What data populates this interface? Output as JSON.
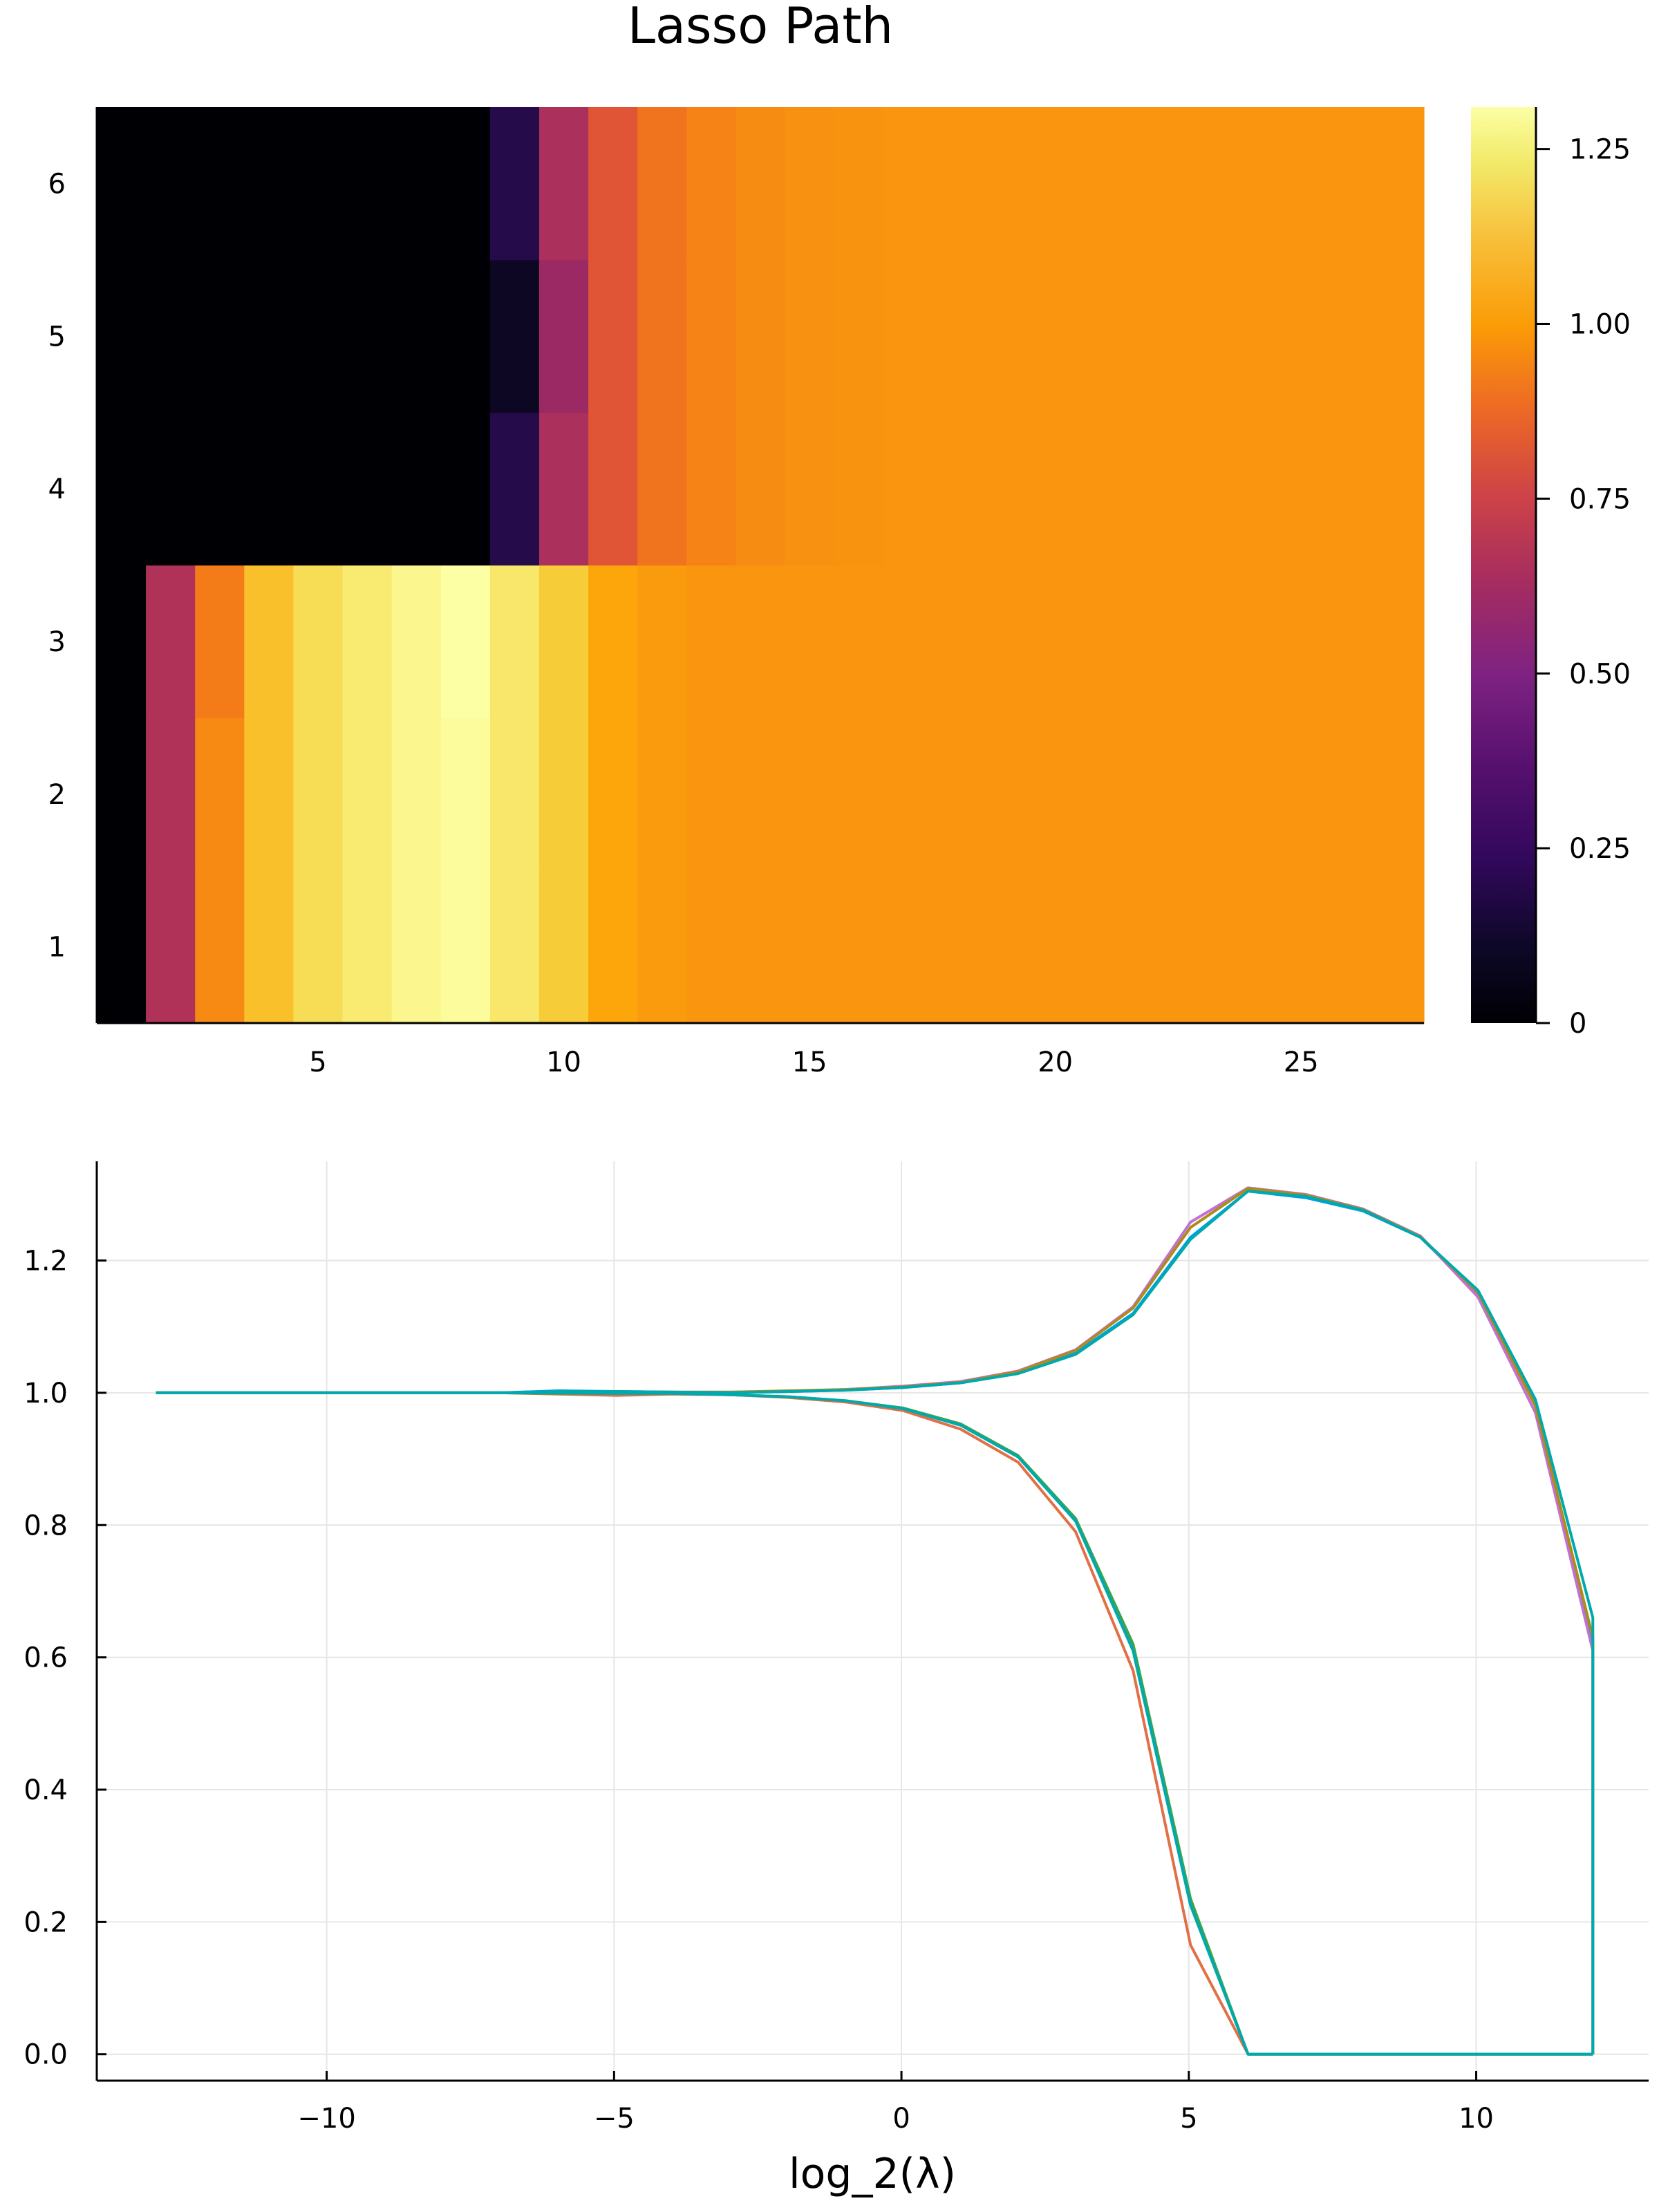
{
  "chart_data": [
    {
      "type": "heatmap",
      "title": "Lasso Path",
      "x_range": [
        0.5,
        27.5
      ],
      "y_range": [
        0.5,
        6.5
      ],
      "x_ticks": [
        5,
        10,
        15,
        20,
        25
      ],
      "y_ticks": [
        1,
        2,
        3,
        4,
        5,
        6
      ],
      "colorbar": {
        "colormap": "inferno",
        "range": [
          0,
          1.31
        ],
        "ticks": [
          0,
          0.25,
          0.5,
          0.75,
          1.0,
          1.25
        ],
        "tick_labels": [
          "0",
          "0.25",
          "0.50",
          "0.75",
          "1.00",
          "1.25"
        ]
      },
      "rows": [
        {
          "y": 1,
          "values": [
            0,
            0.62,
            0.97,
            1.12,
            1.2,
            1.24,
            1.28,
            1.3,
            1.23,
            1.15,
            1.05,
            1.02,
            1.0,
            1.0,
            1.0,
            1.0,
            1.0,
            1.0,
            1.0,
            1.0,
            1.0,
            1.0,
            1.0,
            1.0,
            1.0,
            1.0,
            1.0
          ]
        },
        {
          "y": 2,
          "values": [
            0,
            0.62,
            0.97,
            1.12,
            1.2,
            1.24,
            1.28,
            1.3,
            1.23,
            1.15,
            1.05,
            1.02,
            1.0,
            1.0,
            1.0,
            1.0,
            1.0,
            1.0,
            1.0,
            1.0,
            1.0,
            1.0,
            1.0,
            1.0,
            1.0,
            1.0,
            1.0
          ]
        },
        {
          "y": 3,
          "values": [
            0,
            0.62,
            0.93,
            1.12,
            1.2,
            1.24,
            1.28,
            1.31,
            1.23,
            1.15,
            1.05,
            1.02,
            1.0,
            1.0,
            1.0,
            1.0,
            1.0,
            1.0,
            1.0,
            1.0,
            1.0,
            1.0,
            1.0,
            1.0,
            1.0,
            1.0,
            1.0
          ]
        },
        {
          "y": 4,
          "values": [
            0,
            0,
            0,
            0,
            0,
            0,
            0,
            0,
            0.18,
            0.6,
            0.8,
            0.9,
            0.95,
            0.975,
            0.99,
            0.995,
            1.0,
            1.0,
            1.0,
            1.0,
            1.0,
            1.0,
            1.0,
            1.0,
            1.0,
            1.0,
            1.0
          ]
        },
        {
          "y": 5,
          "values": [
            0,
            0,
            0,
            0,
            0,
            0,
            0,
            0,
            0.08,
            0.55,
            0.8,
            0.9,
            0.95,
            0.975,
            0.99,
            0.995,
            1.0,
            1.0,
            1.0,
            1.0,
            1.0,
            1.0,
            1.0,
            1.0,
            1.0,
            1.0,
            1.0
          ]
        },
        {
          "y": 6,
          "values": [
            0,
            0,
            0,
            0,
            0,
            0,
            0,
            0,
            0.18,
            0.6,
            0.8,
            0.9,
            0.95,
            0.975,
            0.99,
            0.995,
            1.0,
            1.0,
            1.0,
            1.0,
            1.0,
            1.0,
            1.0,
            1.0,
            1.0,
            1.0,
            1.0
          ]
        }
      ]
    },
    {
      "type": "line",
      "xlabel": "log_2(λ)",
      "ylabel": "",
      "xlim": [
        -14,
        13
      ],
      "ylim": [
        -0.04,
        1.35
      ],
      "x_ticks": [
        -10,
        -5,
        0,
        5,
        10
      ],
      "x_tick_labels": [
        "−10",
        "−5",
        "0",
        "5",
        "10"
      ],
      "y_ticks": [
        0,
        0.2,
        0.4,
        0.6,
        0.8,
        1.0,
        1.2
      ],
      "y_tick_labels": [
        "0.0",
        "0.2",
        "0.4",
        "0.6",
        "0.8",
        "1.0",
        "1.2"
      ],
      "grid": true,
      "legend": "none",
      "x": [
        -12.97,
        -11.97,
        -10.97,
        -9.97,
        -8.97,
        -7.97,
        -6.97,
        -5.97,
        -4.97,
        -3.97,
        -2.97,
        -1.97,
        -0.97,
        0.03,
        1.03,
        2.03,
        3.03,
        4.03,
        5.03,
        6.03,
        7.03,
        8.03,
        9.03,
        10.03,
        11.03,
        12.03,
        12.03
      ],
      "series": [
        {
          "color": "#009af9",
          "values": [
            1,
            1,
            1,
            1,
            1,
            1,
            1,
            1.003,
            1.002,
            1.001,
            1.0,
            1.002,
            1.004,
            1.008,
            1.015,
            1.03,
            1.06,
            1.12,
            1.235,
            1.305,
            1.295,
            1.275,
            1.235,
            1.15,
            0.985,
            0.62,
            0
          ]
        },
        {
          "color": "#e26f46",
          "values": [
            1,
            1,
            1,
            1,
            1,
            1,
            1,
            0.998,
            0.996,
            0.998,
            0.997,
            0.993,
            0.986,
            0.973,
            0.945,
            0.895,
            0.79,
            0.58,
            0.165,
            0,
            0,
            0,
            0,
            0,
            0,
            0,
            0
          ]
        },
        {
          "color": "#3da44d",
          "values": [
            1,
            1,
            1,
            1,
            1,
            1,
            1,
            0.999,
            0.999,
            0.999,
            0.997,
            0.994,
            0.988,
            0.977,
            0.953,
            0.905,
            0.81,
            0.62,
            0.235,
            0,
            0,
            0,
            0,
            0,
            0,
            0,
            0
          ]
        },
        {
          "color": "#c271d2",
          "values": [
            1,
            1,
            1,
            1,
            1,
            1,
            1,
            1.001,
            1.001,
            1.001,
            1.001,
            1.002,
            1.005,
            1.01,
            1.017,
            1.033,
            1.065,
            1.13,
            1.258,
            1.31,
            1.3,
            1.278,
            1.237,
            1.145,
            0.97,
            0.61,
            0
          ]
        },
        {
          "color": "#ac8d18",
          "values": [
            1,
            1,
            1,
            1,
            1,
            1,
            1,
            1.001,
            1.001,
            1.001,
            1.001,
            1.003,
            1.005,
            1.009,
            1.016,
            1.032,
            1.064,
            1.128,
            1.25,
            1.309,
            1.299,
            1.277,
            1.236,
            1.152,
            0.98,
            0.63,
            0
          ]
        },
        {
          "color": "#00a9ad",
          "values": [
            1,
            1,
            1,
            1,
            1,
            1,
            1,
            1.0,
            0.999,
            0.999,
            0.997,
            0.994,
            0.988,
            0.976,
            0.951,
            0.903,
            0.806,
            0.61,
            0.225,
            0,
            0,
            0,
            0,
            0,
            0,
            0,
            0
          ]
        },
        {
          "color": "#00a9ad",
          "values": [
            1,
            1,
            1,
            1,
            1,
            1,
            1,
            1.002,
            1.002,
            1.001,
            1.0,
            1.002,
            1.004,
            1.008,
            1.015,
            1.029,
            1.058,
            1.118,
            1.232,
            1.305,
            1.297,
            1.276,
            1.235,
            1.155,
            0.99,
            0.66,
            0
          ]
        }
      ]
    }
  ]
}
